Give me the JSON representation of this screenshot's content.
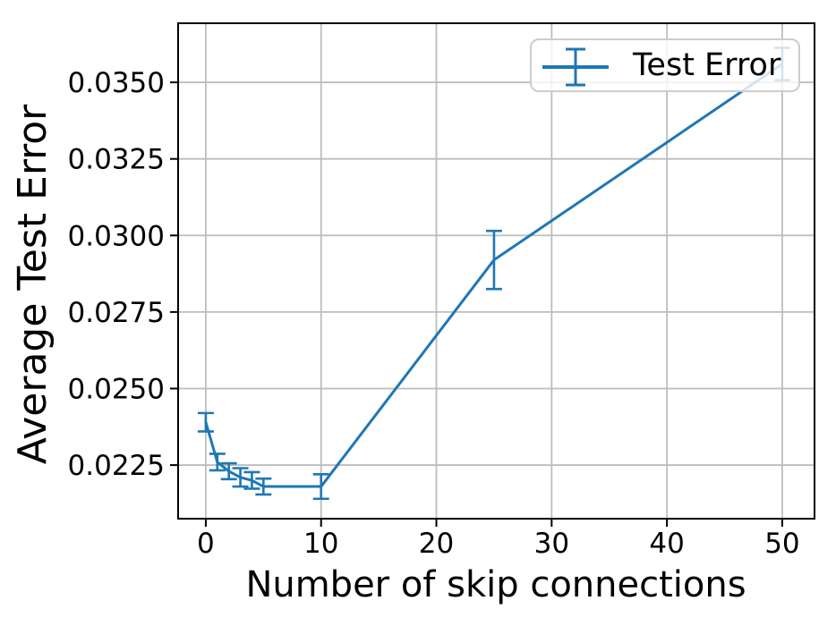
{
  "chart_data": {
    "type": "line",
    "title": "",
    "xlabel": "Number of skip connections",
    "ylabel": "Average Test Error",
    "grid": true,
    "grid_color": "#bdbdbd",
    "spine_color": "#000000",
    "background_color": "#ffffff",
    "legend_position": "upper right",
    "xlim": [
      -2.4,
      52.8
    ],
    "ylim": [
      0.02075,
      0.03693
    ],
    "xticks": [
      0,
      10,
      20,
      30,
      40,
      50
    ],
    "xtick_labels": [
      "0",
      "10",
      "20",
      "30",
      "40",
      "50"
    ],
    "yticks": [
      0.0225,
      0.025,
      0.0275,
      0.03,
      0.0325,
      0.035
    ],
    "ytick_labels": [
      "0.0225",
      "0.0250",
      "0.0275",
      "0.0300",
      "0.0325",
      "0.0350"
    ],
    "series": [
      {
        "name": "Test Error",
        "color": "#1f77b4",
        "x": [
          0,
          1,
          2,
          3,
          4,
          5,
          10,
          25,
          50
        ],
        "y": [
          0.0239,
          0.0226,
          0.0223,
          0.0221,
          0.022,
          0.0218,
          0.0218,
          0.0292,
          0.0356
        ],
        "yerr": [
          0.0003,
          0.00027,
          0.00026,
          0.0003,
          0.00027,
          0.00026,
          0.0004,
          0.00095,
          0.00053
        ]
      }
    ]
  }
}
